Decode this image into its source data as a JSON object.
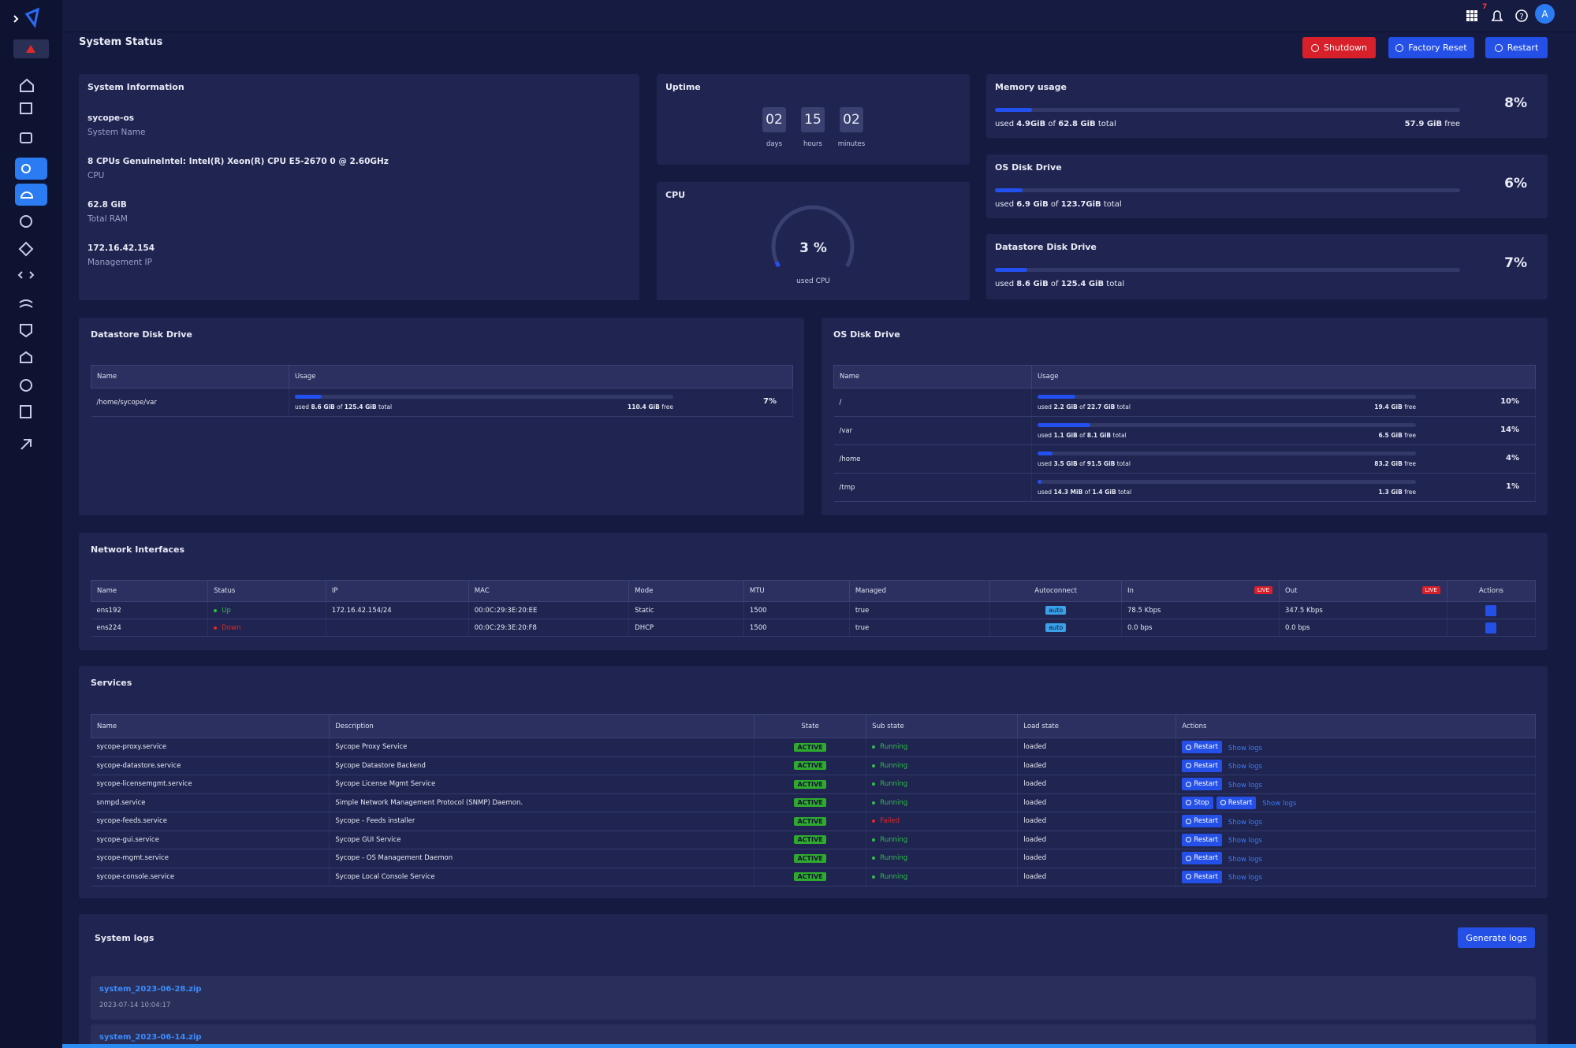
{
  "header": {
    "title": "System Status",
    "buttons": [
      "Shutdown",
      "Factory Reset",
      "Restart"
    ],
    "notifications": "7",
    "avatar": "A"
  },
  "labels": {
    "used": "used",
    "of": "of",
    "total": "total",
    "free": "free"
  },
  "system_info": {
    "title": "System Information",
    "items": [
      {
        "value": "sycope-os",
        "label": "System Name"
      },
      {
        "value": "8 CPUs GenuineIntel: Intel(R) Xeon(R) CPU E5-2670 0 @ 2.60GHz",
        "label": "CPU"
      },
      {
        "value": "62.8 GiB",
        "label": "Total RAM"
      },
      {
        "value": "172.16.42.154",
        "label": "Management IP"
      }
    ]
  },
  "uptime": {
    "title": "Uptime",
    "parts": [
      {
        "value": "02",
        "unit": "days"
      },
      {
        "value": "15",
        "unit": "hours"
      },
      {
        "value": "02",
        "unit": "minutes"
      }
    ]
  },
  "cpu": {
    "title": "CPU",
    "usage": {
      "value": 3,
      "label": "3 %"
    },
    "caption": "used CPU"
  },
  "resources": [
    {
      "title": "Memory usage",
      "used": "4.9GiB",
      "total": "62.8 GiB",
      "free": "57.9 GiB",
      "usage": {
        "value": 8,
        "label": "8%"
      }
    },
    {
      "title": "OS Disk Drive",
      "used": "6.9 GiB",
      "total": "123.7GiB",
      "usage": {
        "value": 6,
        "label": "6%"
      }
    },
    {
      "title": "Datastore Disk Drive",
      "used": "8.6 GiB",
      "total": "125.4 GiB",
      "usage": {
        "value": 7,
        "label": "7%"
      }
    }
  ],
  "datastore_disk": {
    "title": "Datastore Disk Drive",
    "columns": [
      "Name",
      "Usage"
    ],
    "rows": [
      {
        "name": "/home/sycope/var",
        "used": "8.6 GiB",
        "total": "125.4 GiB",
        "free": "110.4 GiB",
        "usage": {
          "value": 7,
          "label": "7%"
        }
      }
    ]
  },
  "os_disk": {
    "title": "OS Disk Drive",
    "columns": [
      "Name",
      "Usage"
    ],
    "rows": [
      {
        "name": "/",
        "used": "2.2 GiB",
        "total": "22.7 GiB",
        "free": "19.4 GiB",
        "usage": {
          "value": 10,
          "label": "10%"
        }
      },
      {
        "name": "/var",
        "used": "1.1 GiB",
        "total": "8.1 GiB",
        "free": "6.5 GiB",
        "usage": {
          "value": 14,
          "label": "14%"
        }
      },
      {
        "name": "/home",
        "used": "3.5 GiB",
        "total": "91.5 GiB",
        "free": "83.2 GiB",
        "usage": {
          "value": 4,
          "label": "4%"
        }
      },
      {
        "name": "/tmp",
        "used": "14.3 MiB",
        "total": "1.4 GiB",
        "free": "1.3 GiB",
        "usage": {
          "value": 1,
          "label": "1%"
        }
      }
    ]
  },
  "network": {
    "title": "Network Interfaces",
    "live_badge": "LIVE",
    "columns": [
      "Name",
      "Status",
      "IP",
      "MAC",
      "Mode",
      "MTU",
      "Managed",
      "Autoconnect",
      "In",
      "Out",
      "Actions"
    ],
    "rows": [
      [
        "ens192",
        "Up",
        "172.16.42.154/24",
        "00:0C:29:3E:20:EE",
        "Static",
        "1500",
        "true",
        "auto",
        "78.5 Kbps",
        "347.5 Kbps"
      ],
      [
        "ens224",
        "Down",
        null,
        "00:0C:29:3E:20:F8",
        "DHCP",
        "1500",
        "true",
        "auto",
        "0.0 bps",
        "0.0 bps"
      ]
    ]
  },
  "services": {
    "title": "Services",
    "columns": [
      "Name",
      "Description",
      "State",
      "Sub state",
      "Load state",
      "Actions"
    ],
    "show_logs": "Show logs",
    "rows": [
      {
        "name": "sycope-proxy.service",
        "description": "Sycope Proxy Service",
        "state": "ACTIVE",
        "sub": "Running",
        "load": "loaded",
        "actions": [
          "Restart"
        ]
      },
      {
        "name": "sycope-datastore.service",
        "description": "Sycope Datastore Backend",
        "state": "ACTIVE",
        "sub": "Running",
        "load": "loaded",
        "actions": [
          "Restart"
        ]
      },
      {
        "name": "sycope-licensemgmt.service",
        "description": "Sycope License Mgmt Service",
        "state": "ACTIVE",
        "sub": "Running",
        "load": "loaded",
        "actions": [
          "Restart"
        ]
      },
      {
        "name": "snmpd.service",
        "description": "Simple Network Management Protocol (SNMP) Daemon.",
        "state": "ACTIVE",
        "sub": "Running",
        "load": "loaded",
        "actions": [
          "Stop",
          "Restart"
        ]
      },
      {
        "name": "sycope-feeds.service",
        "description": "Sycope - Feeds installer",
        "state": "ACTIVE",
        "sub": "Failed",
        "load": "loaded",
        "actions": [
          "Restart"
        ]
      },
      {
        "name": "sycope-gui.service",
        "description": "Sycope GUI Service",
        "state": "ACTIVE",
        "sub": "Running",
        "load": "loaded",
        "actions": [
          "Restart"
        ]
      },
      {
        "name": "sycope-mgmt.service",
        "description": "Sycope - OS Management Daemon",
        "state": "ACTIVE",
        "sub": "Running",
        "load": "loaded",
        "actions": [
          "Restart"
        ]
      },
      {
        "name": "sycope-console.service",
        "description": "Sycope Local Console Service",
        "state": "ACTIVE",
        "sub": "Running",
        "load": "loaded",
        "actions": [
          "Restart"
        ]
      }
    ]
  },
  "logs": {
    "title": "System logs",
    "button": "Generate logs",
    "entries": [
      {
        "name": "system_2023-06-28.zip",
        "date": "2023-07-14 10:04:17"
      },
      {
        "name": "system_2023-06-14.zip"
      }
    ]
  }
}
